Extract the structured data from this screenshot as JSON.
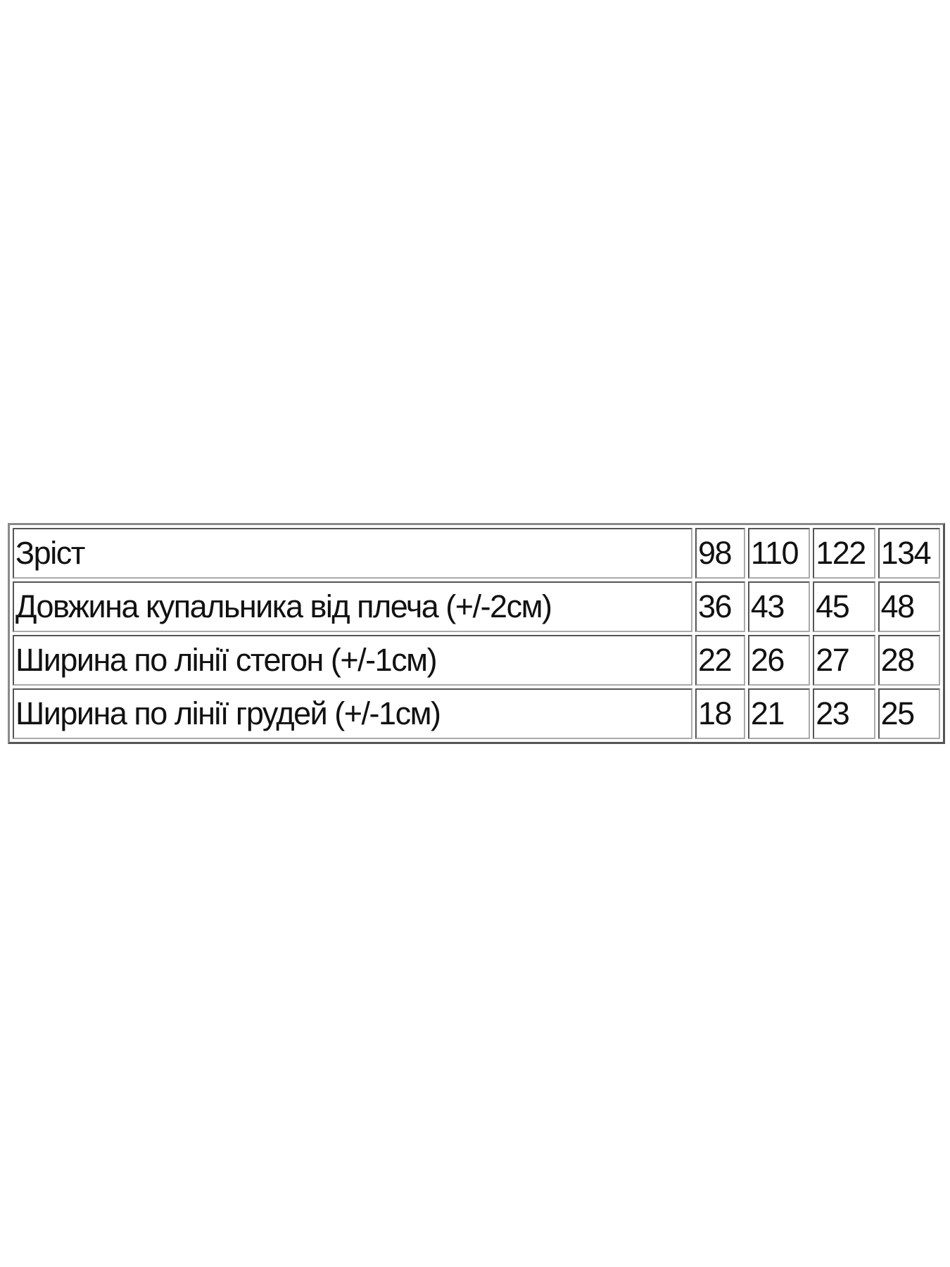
{
  "size_table": {
    "rows": [
      {
        "label": "Зріст",
        "values": [
          "98",
          "110",
          "122",
          "134"
        ]
      },
      {
        "label": "Довжина купальника від плеча (+/-2см)",
        "values": [
          "36",
          "43",
          "45",
          "48"
        ]
      },
      {
        "label": "Ширина по лінії стегон (+/-1см)",
        "values": [
          "22",
          "26",
          "27",
          "28"
        ]
      },
      {
        "label": "Ширина по лінії грудей (+/-1см)",
        "values": [
          "18",
          "21",
          "23",
          "25"
        ]
      }
    ]
  }
}
